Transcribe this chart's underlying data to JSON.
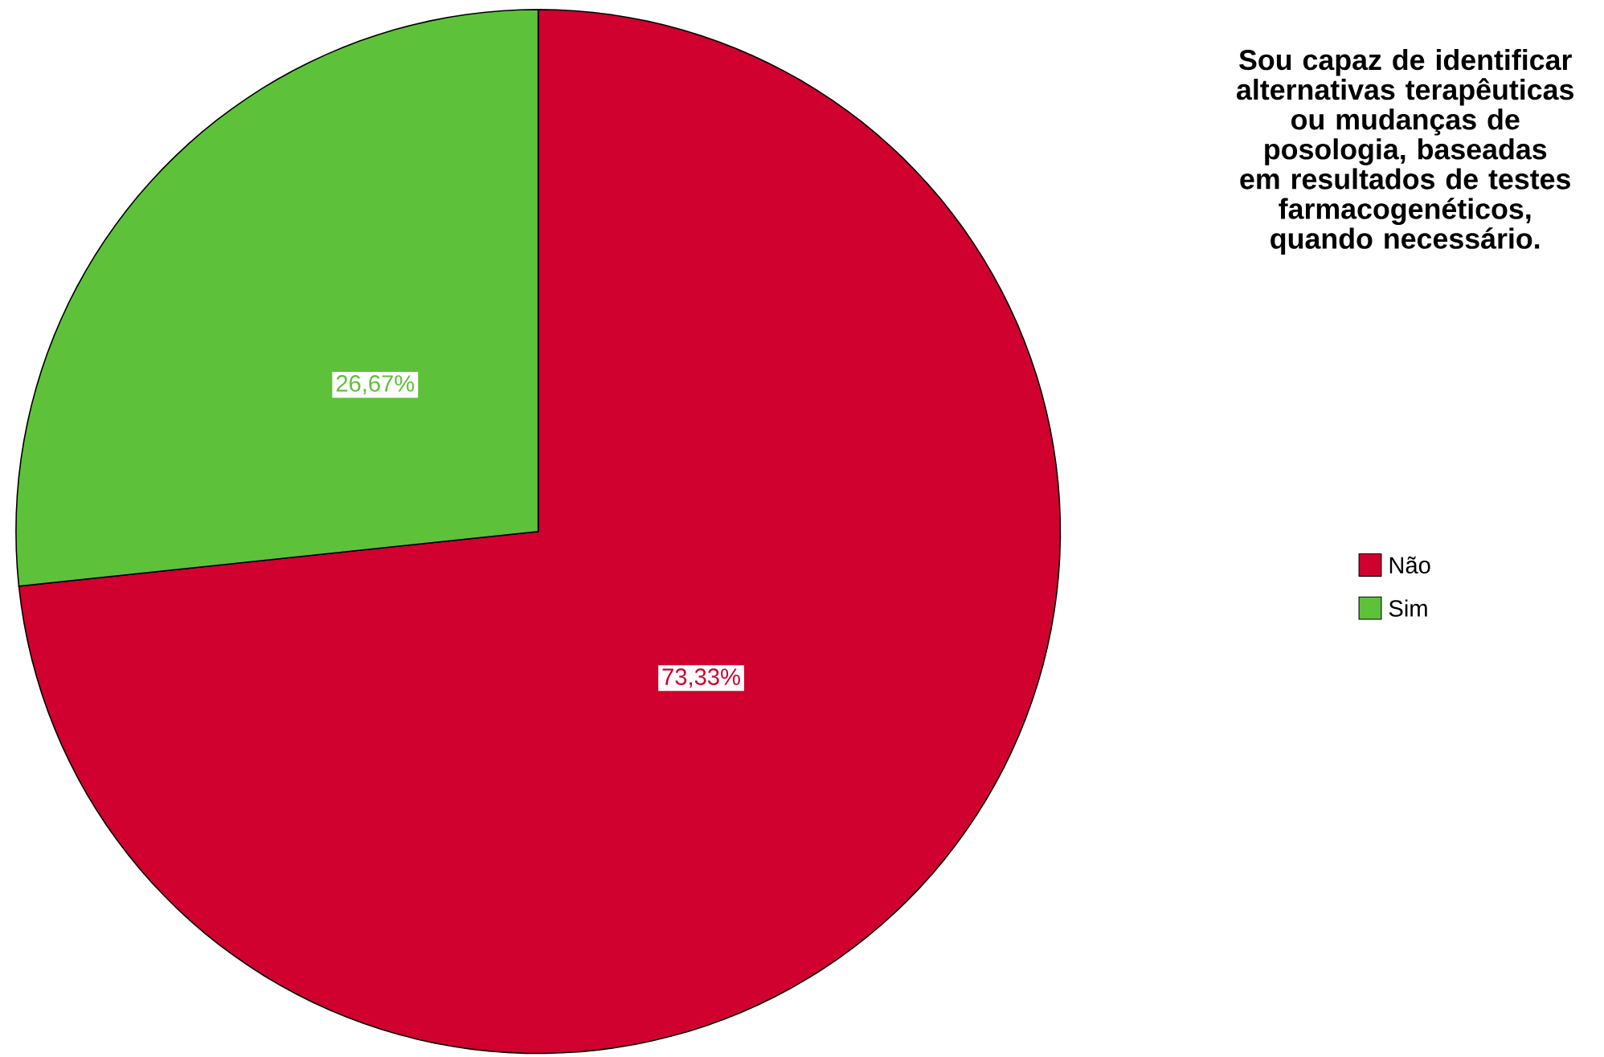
{
  "chart_data": {
    "type": "pie",
    "legend_title": "Sou capaz de identificar alternativas terapêuticas ou mudanças de posologia, baseadas em resultados de testes farmacogenéticos, quando necessário.",
    "categories": [
      "Não",
      "Sim"
    ],
    "values": [
      73.33,
      26.67
    ],
    "colors": [
      "#d0002f",
      "#5ec13a"
    ],
    "value_labels": [
      "73,33%",
      "26,67%"
    ],
    "legend": "right"
  }
}
